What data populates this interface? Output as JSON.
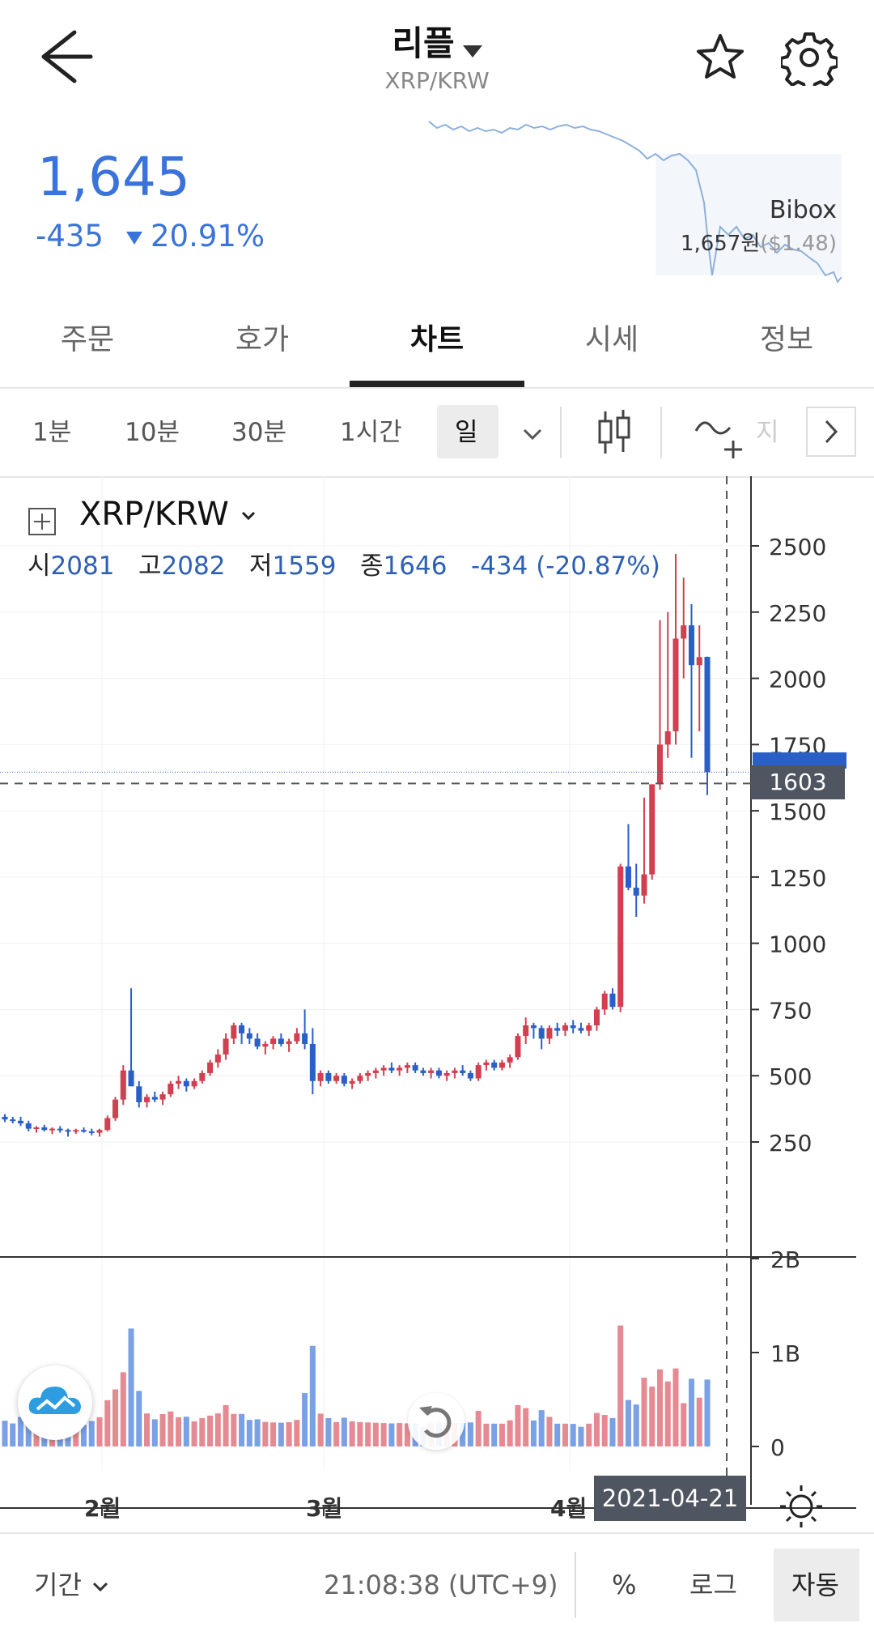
{
  "header": {
    "title": "리플",
    "subtitle": "XRP/KRW"
  },
  "price": {
    "current": "1,645",
    "change": "-435",
    "change_pct": "20.91%",
    "exchange": {
      "name": "Bibox",
      "price_krw": "1,657원",
      "price_usd": "($1.48)"
    }
  },
  "tabs": [
    "주문",
    "호가",
    "차트",
    "시세",
    "정보"
  ],
  "active_tab": "차트",
  "intervals": [
    "1분",
    "10분",
    "30분",
    "1시간",
    "일"
  ],
  "active_interval": "일",
  "indicator_label": "지",
  "chart": {
    "pair": "XRP/KRW",
    "ohlc": {
      "open_label": "시",
      "open": "2081",
      "high_label": "고",
      "high": "2082",
      "low_label": "저",
      "low": "1559",
      "close_label": "종",
      "close": "1646",
      "change": "-434 (-20.87%)"
    },
    "crosshair_price": "1603",
    "crosshair_date": "2021-04-21",
    "x_labels": [
      "2월",
      "3월",
      "4월"
    ]
  },
  "chart_data": {
    "type": "candlestick",
    "y_ticks": [
      250,
      500,
      750,
      1000,
      1250,
      1500,
      1750,
      2000,
      2250,
      2500
    ],
    "volume_ticks": [
      "0",
      "1B",
      "2B"
    ],
    "ylim": [
      0,
      2650
    ],
    "x_labels": [
      "2월",
      "3월",
      "4월"
    ],
    "candles": [
      [
        345,
        355,
        325,
        335
      ],
      [
        335,
        345,
        320,
        330
      ],
      [
        330,
        345,
        310,
        320
      ],
      [
        320,
        330,
        290,
        300
      ],
      [
        300,
        310,
        285,
        305
      ],
      [
        305,
        315,
        290,
        295
      ],
      [
        295,
        305,
        280,
        300
      ],
      [
        300,
        310,
        285,
        295
      ],
      [
        295,
        300,
        270,
        290
      ],
      [
        290,
        300,
        280,
        295
      ],
      [
        295,
        305,
        285,
        290
      ],
      [
        290,
        300,
        275,
        285
      ],
      [
        285,
        300,
        270,
        295
      ],
      [
        295,
        350,
        290,
        340
      ],
      [
        340,
        420,
        330,
        410
      ],
      [
        410,
        540,
        390,
        520
      ],
      [
        520,
        830,
        480,
        460
      ],
      [
        460,
        480,
        380,
        400
      ],
      [
        400,
        430,
        380,
        420
      ],
      [
        420,
        440,
        400,
        410
      ],
      [
        410,
        440,
        390,
        430
      ],
      [
        430,
        480,
        420,
        470
      ],
      [
        470,
        500,
        450,
        480
      ],
      [
        480,
        490,
        440,
        460
      ],
      [
        460,
        490,
        450,
        480
      ],
      [
        480,
        520,
        470,
        510
      ],
      [
        510,
        560,
        500,
        550
      ],
      [
        550,
        600,
        530,
        580
      ],
      [
        580,
        660,
        560,
        640
      ],
      [
        640,
        700,
        620,
        690
      ],
      [
        690,
        700,
        620,
        660
      ],
      [
        660,
        680,
        620,
        640
      ],
      [
        640,
        660,
        600,
        610
      ],
      [
        610,
        630,
        580,
        620
      ],
      [
        620,
        650,
        600,
        640
      ],
      [
        640,
        660,
        610,
        620
      ],
      [
        620,
        640,
        590,
        630
      ],
      [
        630,
        680,
        620,
        660
      ],
      [
        660,
        750,
        600,
        620
      ],
      [
        620,
        680,
        430,
        480
      ],
      [
        480,
        520,
        460,
        510
      ],
      [
        510,
        520,
        470,
        480
      ],
      [
        480,
        510,
        470,
        500
      ],
      [
        500,
        510,
        460,
        470
      ],
      [
        470,
        490,
        450,
        480
      ],
      [
        480,
        510,
        470,
        500
      ],
      [
        500,
        520,
        480,
        510
      ],
      [
        510,
        530,
        490,
        520
      ],
      [
        520,
        540,
        500,
        530
      ],
      [
        530,
        550,
        510,
        520
      ],
      [
        520,
        540,
        500,
        530
      ],
      [
        530,
        550,
        510,
        540
      ],
      [
        540,
        550,
        510,
        520
      ],
      [
        520,
        530,
        500,
        510
      ],
      [
        510,
        530,
        490,
        520
      ],
      [
        520,
        530,
        490,
        500
      ],
      [
        500,
        520,
        480,
        510
      ],
      [
        510,
        530,
        490,
        520
      ],
      [
        520,
        540,
        500,
        510
      ],
      [
        510,
        520,
        480,
        490
      ],
      [
        490,
        550,
        480,
        540
      ],
      [
        540,
        560,
        520,
        550
      ],
      [
        550,
        560,
        520,
        530
      ],
      [
        530,
        560,
        520,
        550
      ],
      [
        550,
        580,
        530,
        570
      ],
      [
        570,
        660,
        560,
        650
      ],
      [
        650,
        720,
        620,
        690
      ],
      [
        690,
        700,
        640,
        680
      ],
      [
        680,
        690,
        600,
        640
      ],
      [
        640,
        690,
        620,
        680
      ],
      [
        680,
        700,
        650,
        670
      ],
      [
        670,
        700,
        650,
        690
      ],
      [
        690,
        710,
        660,
        680
      ],
      [
        680,
        700,
        660,
        670
      ],
      [
        670,
        700,
        650,
        690
      ],
      [
        690,
        760,
        670,
        750
      ],
      [
        750,
        820,
        730,
        810
      ],
      [
        810,
        830,
        750,
        760
      ],
      [
        760,
        1300,
        740,
        1290
      ],
      [
        1290,
        1450,
        1200,
        1210
      ],
      [
        1210,
        1300,
        1100,
        1180
      ],
      [
        1180,
        1550,
        1150,
        1260
      ],
      [
        1260,
        1600,
        1240,
        1600
      ],
      [
        1600,
        2220,
        1580,
        1750
      ],
      [
        1750,
        2250,
        1700,
        1800
      ],
      [
        1800,
        2470,
        1750,
        2150
      ],
      [
        2150,
        2380,
        2000,
        2200
      ],
      [
        2200,
        2280,
        1700,
        2050
      ],
      [
        2050,
        2200,
        1800,
        2080
      ],
      [
        2081,
        2082,
        1559,
        1646
      ]
    ]
  },
  "bottom_bar": {
    "period_label": "기간",
    "time": "21:08:38 (UTC+9)",
    "percent": "%",
    "log": "로그",
    "auto": "자동"
  },
  "colors": {
    "accent_blue": "#3a73d9",
    "candle_up": "#d04050",
    "candle_down": "#2a5fc8",
    "volume_up": "#e58a92",
    "volume_down": "#7aa0e6",
    "tag_bg": "#4f5661"
  }
}
